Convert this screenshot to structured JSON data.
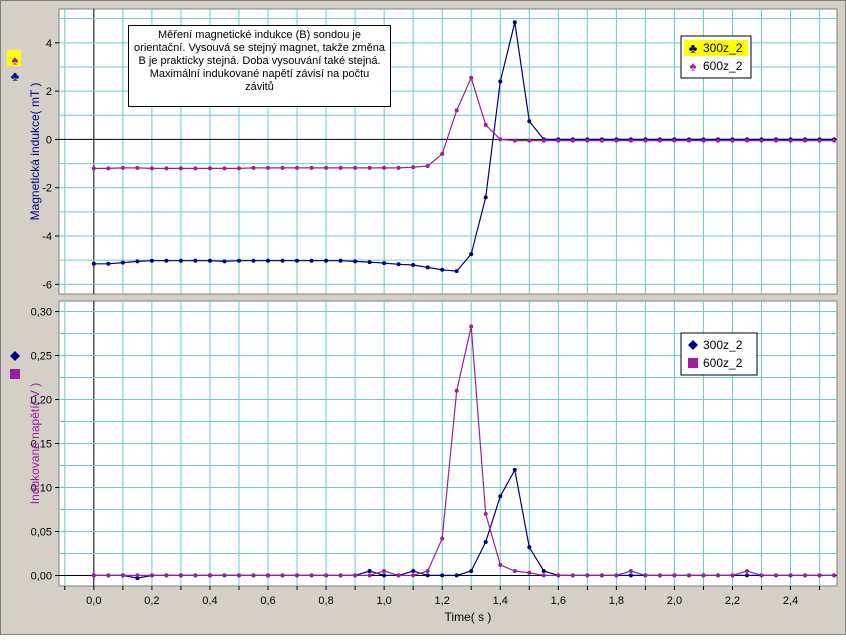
{
  "chart_data": [
    {
      "type": "line",
      "ylabel": "Magnetická indukce( mT )",
      "xlim": [
        -0.12,
        2.56
      ],
      "ylim": [
        -6.4,
        5.4
      ],
      "yticks": [
        -6,
        -4,
        -2,
        0,
        2,
        4
      ],
      "ytick_labels": [
        "-6",
        "-4",
        "-2",
        "0",
        "2",
        "4"
      ],
      "grid": true,
      "legend_position": "top-right",
      "annotation": "Měření magnetické indukce (B) sondou je orientační. Vysouvá se stejný magnet, takže změna B je prakticky stejná. Doba vysouvání také stejná. Maximální indukované napětí závisí na počtu závitů",
      "series": [
        {
          "name": "300z_2",
          "color": "#00007f",
          "marker": "club",
          "x": [
            0.0,
            0.05,
            0.1,
            0.15,
            0.2,
            0.25,
            0.3,
            0.35,
            0.4,
            0.45,
            0.5,
            0.55,
            0.6,
            0.65,
            0.7,
            0.75,
            0.8,
            0.85,
            0.9,
            0.95,
            1.0,
            1.05,
            1.1,
            1.15,
            1.2,
            1.25,
            1.3,
            1.35,
            1.4,
            1.45,
            1.5,
            1.55,
            1.6,
            1.65,
            1.7,
            1.75,
            1.8,
            1.85,
            1.9,
            1.95,
            2.0,
            2.05,
            2.1,
            2.15,
            2.2,
            2.25,
            2.3,
            2.35,
            2.4,
            2.45,
            2.5,
            2.55
          ],
          "y": [
            -5.15,
            -5.15,
            -5.1,
            -5.05,
            -5.02,
            -5.02,
            -5.02,
            -5.02,
            -5.02,
            -5.05,
            -5.02,
            -5.02,
            -5.02,
            -5.02,
            -5.02,
            -5.02,
            -5.02,
            -5.02,
            -5.05,
            -5.08,
            -5.12,
            -5.17,
            -5.2,
            -5.3,
            -5.4,
            -5.45,
            -4.75,
            -2.4,
            2.4,
            4.85,
            0.75,
            0.0,
            0.0,
            0.0,
            0.0,
            0.0,
            0.0,
            0.0,
            0.0,
            0.0,
            0.0,
            0.0,
            0.0,
            0.0,
            0.0,
            0.0,
            0.0,
            0.0,
            0.0,
            0.0,
            0.0,
            0.0
          ]
        },
        {
          "name": "600z_2",
          "color": "#9a1fa0",
          "marker": "spade",
          "x": [
            0.0,
            0.05,
            0.1,
            0.15,
            0.2,
            0.25,
            0.3,
            0.35,
            0.4,
            0.45,
            0.5,
            0.55,
            0.6,
            0.65,
            0.7,
            0.75,
            0.8,
            0.85,
            0.9,
            0.95,
            1.0,
            1.05,
            1.1,
            1.15,
            1.2,
            1.25,
            1.3,
            1.35,
            1.4,
            1.45,
            1.5,
            1.55,
            1.6,
            1.65,
            1.7,
            1.75,
            1.8,
            1.85,
            1.9,
            1.95,
            2.0,
            2.05,
            2.1,
            2.15,
            2.2,
            2.25,
            2.3,
            2.35,
            2.4,
            2.45,
            2.5,
            2.55
          ],
          "y": [
            -1.2,
            -1.2,
            -1.18,
            -1.18,
            -1.2,
            -1.2,
            -1.2,
            -1.2,
            -1.2,
            -1.2,
            -1.2,
            -1.18,
            -1.18,
            -1.18,
            -1.18,
            -1.18,
            -1.18,
            -1.18,
            -1.18,
            -1.18,
            -1.18,
            -1.18,
            -1.15,
            -1.1,
            -0.6,
            1.2,
            2.55,
            0.6,
            0.0,
            -0.05,
            -0.05,
            -0.05,
            -0.05,
            -0.05,
            -0.05,
            -0.05,
            -0.05,
            -0.05,
            -0.05,
            -0.05,
            -0.05,
            -0.05,
            -0.05,
            -0.05,
            -0.05,
            -0.05,
            -0.05,
            -0.05,
            -0.05,
            -0.05,
            -0.05,
            -0.05
          ]
        }
      ]
    },
    {
      "type": "line",
      "xlabel": "Time( s )",
      "ylabel": "Indukované napětí( V )",
      "xlim": [
        -0.12,
        2.56
      ],
      "ylim": [
        -0.012,
        0.312
      ],
      "xticks": [
        0.0,
        0.2,
        0.4,
        0.6,
        0.8,
        1.0,
        1.2,
        1.4,
        1.6,
        1.8,
        2.0,
        2.2,
        2.4
      ],
      "xtick_labels": [
        "0,0",
        "0,2",
        "0,4",
        "0,6",
        "0,8",
        "1,0",
        "1,2",
        "1,4",
        "1,6",
        "1,8",
        "2,0",
        "2,2",
        "2,4"
      ],
      "yticks": [
        0.0,
        0.05,
        0.1,
        0.15,
        0.2,
        0.25,
        0.3
      ],
      "ytick_labels": [
        "0,00",
        "0,05",
        "0,10",
        "0,15",
        "0,20",
        "0,25",
        "0,30"
      ],
      "grid": true,
      "legend_position": "top-right",
      "series": [
        {
          "name": "300z_2",
          "color": "#00007f",
          "marker": "diamond",
          "x": [
            0.0,
            0.05,
            0.1,
            0.15,
            0.2,
            0.25,
            0.3,
            0.35,
            0.4,
            0.45,
            0.5,
            0.55,
            0.6,
            0.65,
            0.7,
            0.75,
            0.8,
            0.85,
            0.9,
            0.95,
            1.0,
            1.05,
            1.1,
            1.15,
            1.2,
            1.25,
            1.3,
            1.35,
            1.4,
            1.45,
            1.5,
            1.55,
            1.6,
            1.65,
            1.7,
            1.75,
            1.8,
            1.85,
            1.9,
            1.95,
            2.0,
            2.05,
            2.1,
            2.15,
            2.2,
            2.25,
            2.3,
            2.35,
            2.4,
            2.45,
            2.5,
            2.55
          ],
          "y": [
            0.0,
            0.0,
            0.0,
            -0.003,
            0.0,
            0.0,
            0.0,
            0.0,
            0.0,
            0.0,
            0.0,
            0.0,
            0.0,
            0.0,
            0.0,
            0.0,
            0.0,
            0.0,
            0.0,
            0.005,
            0.0,
            0.0,
            0.005,
            0.0,
            0.0,
            0.0,
            0.005,
            0.038,
            0.09,
            0.12,
            0.032,
            0.005,
            0.0,
            0.0,
            0.0,
            0.0,
            0.0,
            0.0,
            0.0,
            0.0,
            0.0,
            0.0,
            0.0,
            0.0,
            0.0,
            0.0,
            0.0,
            0.0,
            0.0,
            0.0,
            0.0,
            0.0
          ]
        },
        {
          "name": "600z_2",
          "color": "#9a1fa0",
          "marker": "square",
          "x": [
            0.0,
            0.05,
            0.1,
            0.15,
            0.2,
            0.25,
            0.3,
            0.35,
            0.4,
            0.45,
            0.5,
            0.55,
            0.6,
            0.65,
            0.7,
            0.75,
            0.8,
            0.85,
            0.9,
            0.95,
            1.0,
            1.05,
            1.1,
            1.15,
            1.2,
            1.25,
            1.3,
            1.35,
            1.4,
            1.45,
            1.5,
            1.55,
            1.6,
            1.65,
            1.7,
            1.75,
            1.8,
            1.85,
            1.9,
            1.95,
            2.0,
            2.05,
            2.1,
            2.15,
            2.2,
            2.25,
            2.3,
            2.35,
            2.4,
            2.45,
            2.5,
            2.55
          ],
          "y": [
            0.0,
            0.0,
            0.0,
            0.0,
            0.0,
            0.0,
            0.0,
            0.0,
            0.0,
            0.0,
            0.0,
            0.0,
            0.0,
            0.0,
            0.0,
            0.0,
            0.0,
            0.0,
            0.0,
            0.0,
            0.005,
            0.0,
            0.0,
            0.005,
            0.042,
            0.21,
            0.283,
            0.07,
            0.012,
            0.005,
            0.003,
            0.0,
            0.0,
            0.0,
            0.0,
            0.0,
            0.0,
            0.005,
            0.0,
            0.0,
            0.0,
            0.0,
            0.0,
            0.0,
            0.0,
            0.005,
            0.0,
            0.0,
            0.0,
            0.0,
            0.0,
            0.0
          ]
        }
      ]
    }
  ],
  "colors": {
    "frame": "#d4d0c8",
    "plot_bg": "#ffffff",
    "grid": "#66cccc",
    "zero_line": "#000000",
    "legend_highlight": "#ffff00"
  }
}
